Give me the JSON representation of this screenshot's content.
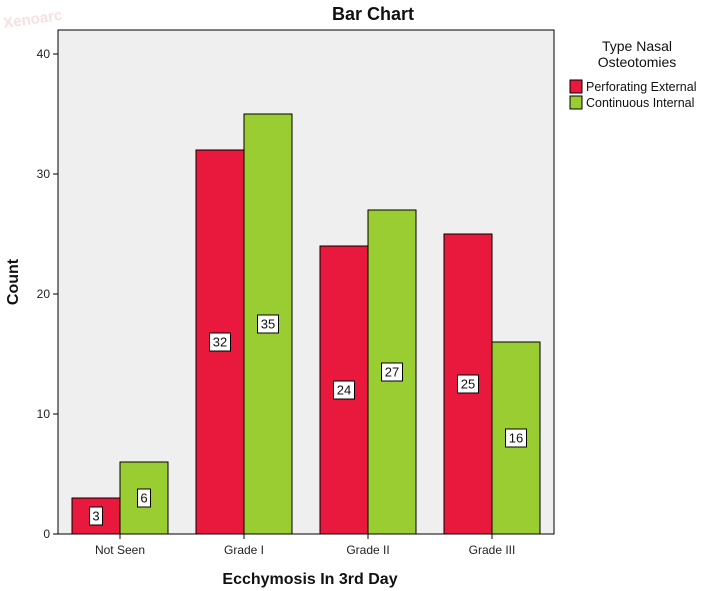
{
  "chart_data": {
    "type": "bar",
    "title": "Bar Chart",
    "xlabel": "Ecchymosis In 3rd Day",
    "ylabel": "Count",
    "categories": [
      "Not Seen",
      "Grade I",
      "Grade II",
      "Grade III"
    ],
    "series": [
      {
        "name": "Perforating External",
        "color": "#e8193c",
        "values": [
          3,
          32,
          24,
          25
        ]
      },
      {
        "name": "Continuous Internal",
        "color": "#9acd32",
        "values": [
          6,
          35,
          27,
          16
        ]
      }
    ],
    "yticks": [
      "0",
      "10",
      "20",
      "30",
      "40"
    ],
    "ylim": [
      0,
      40
    ],
    "legend": {
      "title_lines": [
        "Type  Nasal",
        "Osteotomies"
      ],
      "placement": "top-right"
    },
    "grid": false,
    "watermark": "Xenoarc"
  },
  "colors": {
    "plot_background": "#efefef",
    "frame": "#000000"
  }
}
